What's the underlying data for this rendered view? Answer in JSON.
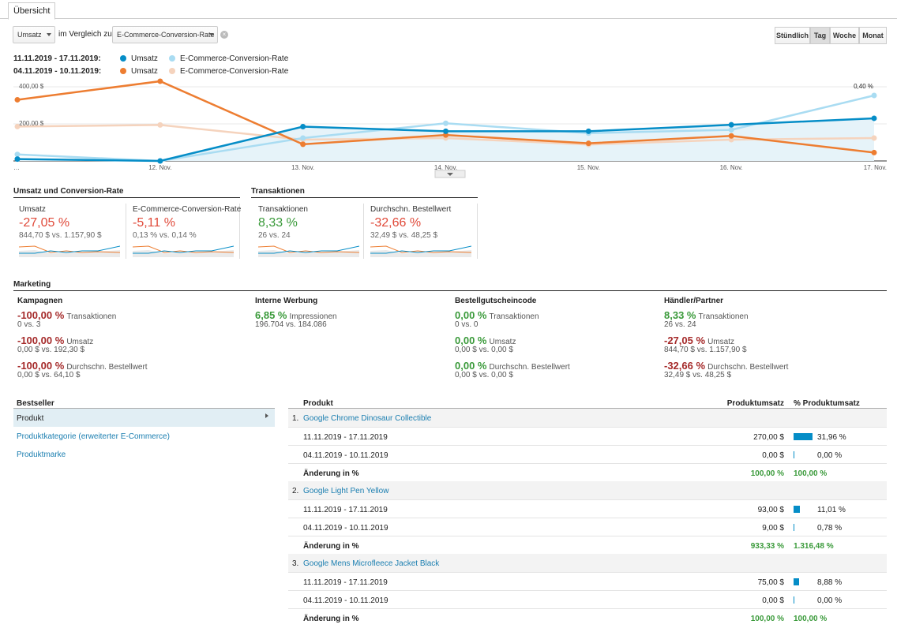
{
  "tabs": {
    "overview": "Übersicht"
  },
  "controls": {
    "metric_select": "Umsatz",
    "compare_label": "im Vergleich zu",
    "compare_select": "E-Commerce-Conversion-Rate",
    "granularity": [
      "Stündlich",
      "Tag",
      "Woche",
      "Monat"
    ],
    "granularity_active": "Tag"
  },
  "legend": {
    "current_range": "11.11.2019 - 17.11.2019:",
    "previous_range": "04.11.2019 - 10.11.2019:",
    "series1": "Umsatz",
    "series2": "E-Commerce-Conversion-Rate"
  },
  "colors": {
    "umsatz_current": "#058dc7",
    "conv_current": "#a9dcf2",
    "umsatz_prev": "#ed7d31",
    "conv_prev": "#f5d3bd"
  },
  "chart_data": {
    "type": "line",
    "x": [
      "…",
      "12. Nov.",
      "13. Nov.",
      "14. Nov.",
      "15. Nov.",
      "16. Nov.",
      "17. Nov."
    ],
    "y_left_ticks": [
      "400,00 $",
      "200,00 $"
    ],
    "y_right_ticks": [
      "0,40 %",
      "0,20 %"
    ],
    "y_left_range": [
      0,
      400
    ],
    "y_right_range": [
      0,
      0.4
    ],
    "series": [
      {
        "name": "Umsatz",
        "period": "11.11.2019 - 17.11.2019",
        "axis": "left",
        "values": [
          10,
          0,
          185,
          160,
          160,
          195,
          230
        ]
      },
      {
        "name": "E-Commerce-Conversion-Rate",
        "period": "11.11.2019 - 17.11.2019",
        "axis": "right",
        "values": [
          0.04,
          0.0,
          0.14,
          0.23,
          0.17,
          0.19,
          0.4
        ]
      },
      {
        "name": "Umsatz",
        "period": "04.11.2019 - 10.11.2019",
        "axis": "left",
        "values": [
          330,
          430,
          90,
          140,
          95,
          135,
          45
        ]
      },
      {
        "name": "E-Commerce-Conversion-Rate",
        "period": "04.11.2019 - 10.11.2019",
        "axis": "right",
        "values": [
          0.21,
          0.22,
          0.13,
          0.14,
          0.1,
          0.13,
          0.14
        ]
      }
    ]
  },
  "summary": {
    "section1_title": "Umsatz und Conversion-Rate",
    "section2_title": "Transaktionen",
    "cards": [
      {
        "label": "Umsatz",
        "pct": "-27,05 %",
        "sub": "844,70 $ vs. 1.157,90 $"
      },
      {
        "label": "E-Commerce-Conversion-Rate",
        "pct": "-5,11 %",
        "sub": "0,13 % vs. 0,14 %"
      },
      {
        "label": "Transaktionen",
        "pct": "8,33 %",
        "sub": "26 vs. 24"
      },
      {
        "label": "Durchschn. Bestellwert",
        "pct": "-32,66 %",
        "sub": "32,49 $ vs. 48,25 $"
      }
    ]
  },
  "marketing": {
    "title": "Marketing",
    "columns": [
      {
        "head": "Kampagnen",
        "rows": [
          {
            "pct": "-100,00 %",
            "metric": "Transaktionen",
            "sub": "0 vs. 3"
          },
          {
            "pct": "-100,00 %",
            "metric": "Umsatz",
            "sub": "0,00 $ vs. 192,30 $"
          },
          {
            "pct": "-100,00 %",
            "metric": "Durchschn. Bestellwert",
            "sub": "0,00 $ vs. 64,10 $"
          }
        ]
      },
      {
        "head": "Interne Werbung",
        "rows": [
          {
            "pct": "6,85 %",
            "metric": "Impressionen",
            "sub": "196.704 vs. 184.086"
          }
        ]
      },
      {
        "head": "Bestellgutscheincode",
        "rows": [
          {
            "pct": "0,00 %",
            "metric": "Transaktionen",
            "sub": "0 vs. 0"
          },
          {
            "pct": "0,00 %",
            "metric": "Umsatz",
            "sub": "0,00 $ vs. 0,00 $"
          },
          {
            "pct": "0,00 %",
            "metric": "Durchschn. Bestellwert",
            "sub": "0,00 $ vs. 0,00 $"
          }
        ]
      },
      {
        "head": "Händler/Partner",
        "rows": [
          {
            "pct": "8,33 %",
            "metric": "Transaktionen",
            "sub": "26 vs. 24"
          },
          {
            "pct": "-27,05 %",
            "metric": "Umsatz",
            "sub": "844,70 $ vs. 1.157,90 $"
          },
          {
            "pct": "-32,66 %",
            "metric": "Durchschn. Bestellwert",
            "sub": "32,49 $ vs. 48,25 $"
          }
        ]
      }
    ]
  },
  "bestseller": {
    "title": "Bestseller",
    "items": [
      "Produkt",
      "Produktkategorie (erweiterter E-Commerce)",
      "Produktmarke"
    ]
  },
  "product_table": {
    "col_product": "Produkt",
    "col_revenue": "Produktumsatz",
    "col_share": "% Produktumsatz",
    "products": [
      {
        "index": "1.",
        "name": "Google Chrome Dinosaur Collectible",
        "rows": [
          {
            "label": "11.11.2019 - 17.11.2019",
            "revenue": "270,00 $",
            "share": "31,96 %",
            "share_value": 31.96
          },
          {
            "label": "04.11.2019 - 10.11.2019",
            "revenue": "0,00 $",
            "share": "0,00 %",
            "share_value": 0
          }
        ],
        "change_label": "Änderung in %",
        "change_revenue": "100,00 %",
        "change_share": "100,00 %"
      },
      {
        "index": "2.",
        "name": "Google Light Pen Yellow",
        "rows": [
          {
            "label": "11.11.2019 - 17.11.2019",
            "revenue": "93,00 $",
            "share": "11,01 %",
            "share_value": 11.01
          },
          {
            "label": "04.11.2019 - 10.11.2019",
            "revenue": "9,00 $",
            "share": "0,78 %",
            "share_value": 0.78
          }
        ],
        "change_label": "Änderung in %",
        "change_revenue": "933,33 %",
        "change_share": "1.316,48 %"
      },
      {
        "index": "3.",
        "name": "Google Mens Microfleece Jacket Black",
        "rows": [
          {
            "label": "11.11.2019 - 17.11.2019",
            "revenue": "75,00 $",
            "share": "8,88 %",
            "share_value": 8.88
          },
          {
            "label": "04.11.2019 - 10.11.2019",
            "revenue": "0,00 $",
            "share": "0,00 %",
            "share_value": 0
          }
        ],
        "change_label": "Änderung in %",
        "change_revenue": "100,00 %",
        "change_share": "100,00 %"
      }
    ]
  }
}
